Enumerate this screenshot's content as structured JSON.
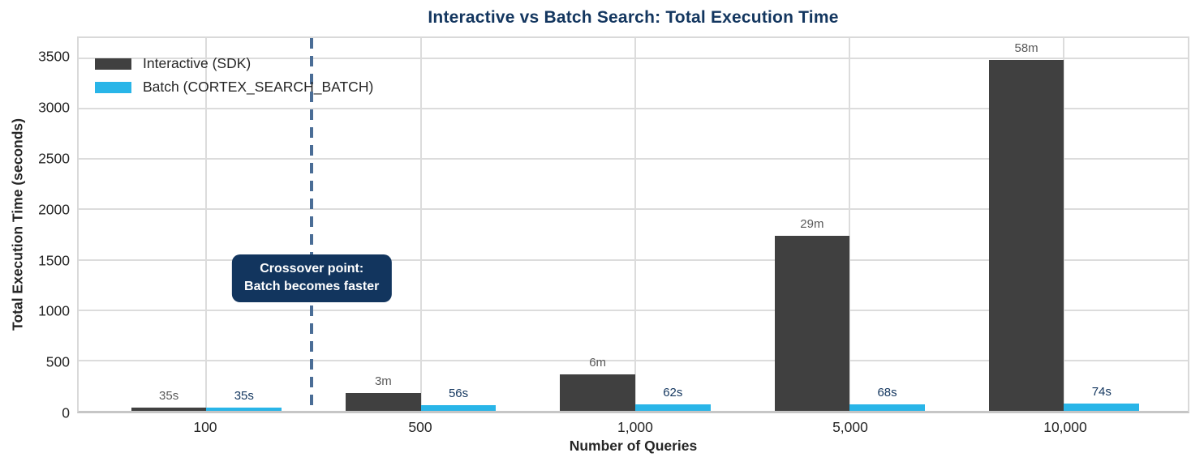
{
  "chart_data": {
    "type": "bar",
    "title": "Interactive vs Batch Search: Total Execution Time",
    "xlabel": "Number of Queries",
    "ylabel": "Total Execution Time (seconds)",
    "categories": [
      "100",
      "500",
      "1,000",
      "5,000",
      "10,000"
    ],
    "series": [
      {
        "name": "Interactive (SDK)",
        "color": "#404040",
        "values_seconds": [
          35,
          180,
          360,
          1740,
          3480
        ],
        "bar_labels": [
          "35s",
          "3m",
          "6m",
          "29m",
          "58m"
        ],
        "label_color": "#595959"
      },
      {
        "name": "Batch (CORTEX_SEARCH_BATCH)",
        "color": "#29b5e8",
        "values_seconds": [
          35,
          56,
          62,
          68,
          74
        ],
        "bar_labels": [
          "35s",
          "56s",
          "62s",
          "68s",
          "74s"
        ],
        "label_color": "#12355e"
      }
    ],
    "yticks": [
      0,
      500,
      1000,
      1500,
      2000,
      2500,
      3000,
      3500
    ],
    "ylim": [
      0,
      3700
    ],
    "grid": true,
    "legend_position": "upper-left",
    "annotation": {
      "line1": "Crossover point:",
      "line2": "Batch becomes faster",
      "box_color": "#12355e",
      "text_color": "#ffffff",
      "line_x_fraction": 0.2101,
      "line_color": "#4a6d96",
      "line_style": "dashed"
    },
    "colors": {
      "title": "#13365f",
      "gridline": "#dcdcdc",
      "axis_text": "#262626",
      "plot_border": "#d9d9d9"
    }
  }
}
